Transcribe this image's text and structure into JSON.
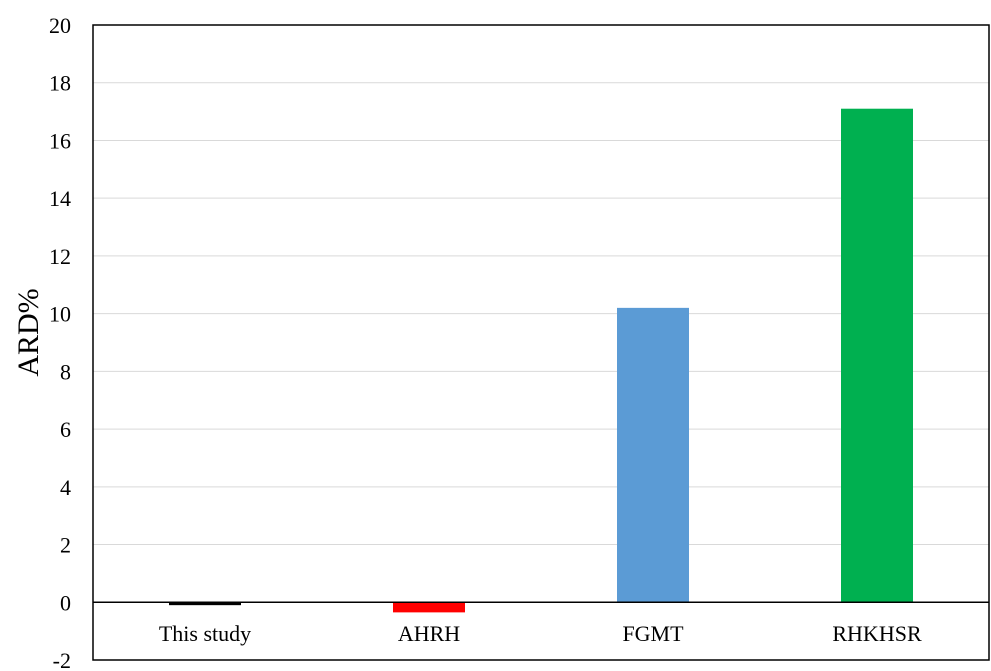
{
  "chart_data": {
    "type": "bar",
    "title": "",
    "xlabel": "",
    "ylabel": "ARD%",
    "ylim": [
      -2,
      20
    ],
    "yticks": [
      -2,
      0,
      2,
      4,
      6,
      8,
      10,
      12,
      14,
      16,
      18,
      20
    ],
    "ytick_labels": [
      "-2",
      "0",
      "2",
      "4",
      "6",
      "8",
      "10",
      "12",
      "14",
      "16",
      "18",
      "20"
    ],
    "grid": true,
    "legend": "none",
    "categories": [
      "This study",
      "AHRH",
      "FGMT",
      "RHKHSR"
    ],
    "values": [
      -0.1,
      -0.35,
      10.2,
      17.1
    ],
    "colors": [
      "#000000",
      "#ff0000",
      "#5b9bd5",
      "#00b050"
    ]
  }
}
